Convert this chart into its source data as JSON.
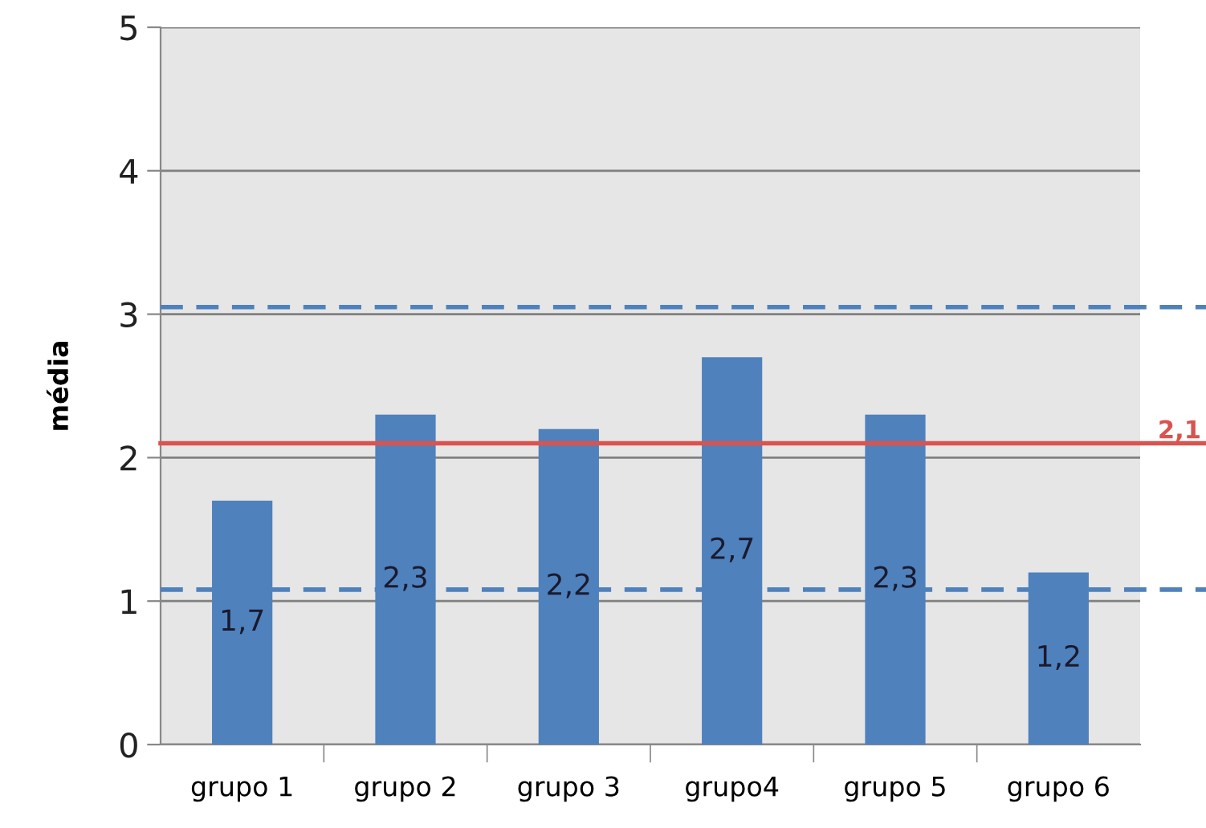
{
  "chart_data": {
    "type": "bar",
    "ylabel": "média",
    "categories": [
      "grupo 1",
      "grupo 2",
      "grupo 3",
      "grupo4",
      "grupo 5",
      "grupo 6"
    ],
    "values": [
      1.7,
      2.3,
      2.2,
      2.7,
      2.3,
      1.2
    ],
    "value_labels": [
      "1,7",
      "2,3",
      "2,2",
      "2,7",
      "2,3",
      "1,2"
    ],
    "color": "#4f81bd",
    "ylim": [
      0,
      5
    ],
    "yticks": [
      0,
      1,
      2,
      3,
      4,
      5
    ],
    "grid": "y",
    "ref_lines": [
      {
        "axis": "y",
        "value": 2.1,
        "label": "2,1",
        "color": "#d9534f",
        "line_style": "solid"
      },
      {
        "axis": "y",
        "value": 3.05,
        "label": null,
        "color": "#4f81bd",
        "line_style": "dashed"
      },
      {
        "axis": "y",
        "value": 1.08,
        "label": null,
        "color": "#4f81bd",
        "line_style": "dashed"
      }
    ]
  }
}
